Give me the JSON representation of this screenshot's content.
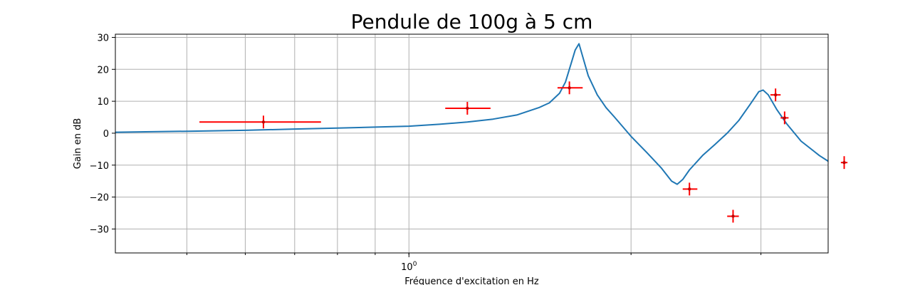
{
  "chart_data": {
    "type": "scatter",
    "title": "Pendule de 100g à 5 cm",
    "xlabel": "Fréquence d'excitation en Hz",
    "ylabel": "Gain en dB",
    "xscale": "log",
    "xlim": [
      0.4,
      3.7
    ],
    "ylim": [
      -37.5,
      31
    ],
    "grid": true,
    "x_ticks": [
      {
        "value": 1.0,
        "base": "10",
        "exp": "0"
      }
    ],
    "y_ticks": [
      {
        "value": 30,
        "label": "30"
      },
      {
        "value": 20,
        "label": "20"
      },
      {
        "value": 10,
        "label": "10"
      },
      {
        "value": 0,
        "label": "0"
      },
      {
        "value": -10,
        "label": "−10"
      },
      {
        "value": -20,
        "label": "−20"
      },
      {
        "value": -30,
        "label": "−30"
      }
    ],
    "model_curve": {
      "color": "#1f77b4",
      "points": [
        [
          0.4,
          0.3
        ],
        [
          0.5,
          0.6
        ],
        [
          0.6,
          0.9
        ],
        [
          0.7,
          1.3
        ],
        [
          0.8,
          1.6
        ],
        [
          0.9,
          1.9
        ],
        [
          1.0,
          2.2
        ],
        [
          1.1,
          2.8
        ],
        [
          1.2,
          3.5
        ],
        [
          1.3,
          4.4
        ],
        [
          1.4,
          5.7
        ],
        [
          1.5,
          8.0
        ],
        [
          1.55,
          9.5
        ],
        [
          1.6,
          12.5
        ],
        [
          1.63,
          16.0
        ],
        [
          1.66,
          22.0
        ],
        [
          1.68,
          26.0
        ],
        [
          1.7,
          28.0
        ],
        [
          1.72,
          24.0
        ],
        [
          1.75,
          18.0
        ],
        [
          1.8,
          12.0
        ],
        [
          1.85,
          8.0
        ],
        [
          1.9,
          5.0
        ],
        [
          2.0,
          -1.0
        ],
        [
          2.1,
          -6.0
        ],
        [
          2.2,
          -11.0
        ],
        [
          2.27,
          -15.0
        ],
        [
          2.31,
          -16.0
        ],
        [
          2.35,
          -14.5
        ],
        [
          2.4,
          -11.5
        ],
        [
          2.5,
          -7.0
        ],
        [
          2.6,
          -3.5
        ],
        [
          2.7,
          0.0
        ],
        [
          2.8,
          4.0
        ],
        [
          2.9,
          9.0
        ],
        [
          2.98,
          13.0
        ],
        [
          3.02,
          13.5
        ],
        [
          3.07,
          12.0
        ],
        [
          3.15,
          7.5
        ],
        [
          3.25,
          3.0
        ],
        [
          3.4,
          -2.5
        ],
        [
          3.6,
          -7.0
        ],
        [
          3.8,
          -10.5
        ],
        [
          4.0,
          -13.0
        ],
        [
          4.2,
          -15.5
        ],
        [
          4.4,
          -17.0
        ]
      ]
    },
    "measurements": {
      "color": "#ff0000",
      "marker_color": "#c00000",
      "points": [
        {
          "x": 0.635,
          "y": 3.5,
          "xmin": 0.52,
          "xmax": 0.76,
          "yerr": 2.0
        },
        {
          "x": 1.2,
          "y": 7.8,
          "xmin": 1.12,
          "xmax": 1.29,
          "yerr": 2.0
        },
        {
          "x": 1.65,
          "y": 14.2,
          "xmin": 1.59,
          "xmax": 1.72,
          "yerr": 2.0
        },
        {
          "x": 2.4,
          "y": -17.5,
          "xmin": 2.35,
          "xmax": 2.46,
          "yerr": 2.0
        },
        {
          "x": 2.75,
          "y": -26.0,
          "xmin": 2.7,
          "xmax": 2.8,
          "yerr": 2.0
        },
        {
          "x": 3.14,
          "y": 12.0,
          "xmin": 3.09,
          "xmax": 3.19,
          "yerr": 2.0
        },
        {
          "x": 3.23,
          "y": 4.8,
          "xmin": 3.19,
          "xmax": 3.27,
          "yerr": 2.0
        },
        {
          "x": 3.89,
          "y": -9.2,
          "xmin": 3.85,
          "xmax": 3.93,
          "yerr": 2.0
        }
      ]
    }
  }
}
